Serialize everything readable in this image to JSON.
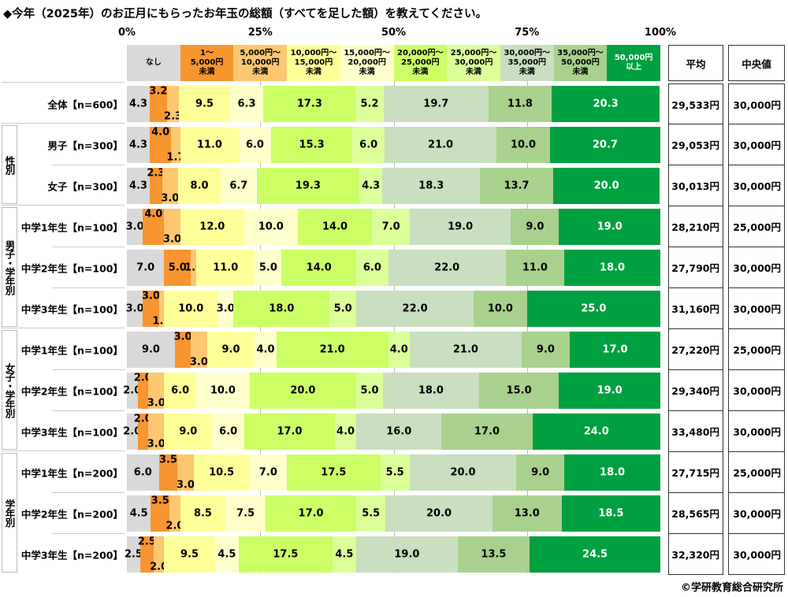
{
  "chart_data": {
    "type": "bar",
    "stacked": true,
    "orientation": "horizontal",
    "title": "◆今年（2025年）のお正月にもらったお年玉の総額（すべてを足した額）を教えてください。",
    "xlim": [
      0,
      100
    ],
    "x_ticks": [
      "0%",
      "25%",
      "50%",
      "75%",
      "100%"
    ],
    "series": [
      {
        "name": "なし",
        "color": "#d9d9d9"
      },
      {
        "name": "1～\n5,000円\n未満",
        "color": "#f79530"
      },
      {
        "name": "5,000円～\n10,000円\n未満",
        "color": "#fcc770"
      },
      {
        "name": "10,000円～\n15,000円\n未満",
        "color": "#ffff99"
      },
      {
        "name": "15,000円～\n20,000円\n未満",
        "color": "#ffffcc"
      },
      {
        "name": "20,000円～\n25,000円\n未満",
        "color": "#ccff66"
      },
      {
        "name": "25,000円～\n30,000円\n未満",
        "color": "#ddff99"
      },
      {
        "name": "30,000円～\n35,000円\n未満",
        "color": "#c9dfbf"
      },
      {
        "name": "35,000円～\n50,000円\n未満",
        "color": "#a9d18e"
      },
      {
        "name": "50,000円\n以上",
        "color": "#00a040"
      }
    ],
    "extra_columns": [
      "平均",
      "中央値"
    ],
    "groups": [
      {
        "label": "",
        "rows": [
          0
        ]
      },
      {
        "label": "性別",
        "rows": [
          1,
          2
        ]
      },
      {
        "label": "男子・学年別",
        "rows": [
          3,
          4,
          5
        ]
      },
      {
        "label": "女子・学年別",
        "rows": [
          6,
          7,
          8
        ]
      },
      {
        "label": "学年別",
        "rows": [
          9,
          10,
          11
        ]
      }
    ],
    "rows": [
      {
        "label": "全体【n=600】",
        "values": [
          4.3,
          3.2,
          2.3,
          9.5,
          6.3,
          17.3,
          5.2,
          19.7,
          11.8,
          20.3
        ],
        "mean": "29,533円",
        "median": "30,000円"
      },
      {
        "label": "男子【n=300】",
        "values": [
          4.3,
          4.0,
          1.7,
          11.0,
          6.0,
          15.3,
          6.0,
          21.0,
          10.0,
          20.7
        ],
        "mean": "29,053円",
        "median": "30,000円"
      },
      {
        "label": "女子【n=300】",
        "values": [
          4.3,
          2.3,
          3.0,
          8.0,
          6.7,
          19.3,
          4.3,
          18.3,
          13.7,
          20.0
        ],
        "mean": "30,013円",
        "median": "30,000円"
      },
      {
        "label": "中学1年生【n=100】",
        "values": [
          3.0,
          4.0,
          3.0,
          12.0,
          10.0,
          14.0,
          7.0,
          19.0,
          9.0,
          19.0
        ],
        "mean": "28,210円",
        "median": "25,000円"
      },
      {
        "label": "中学2年生【n=100】",
        "values": [
          7.0,
          5.0,
          1.0,
          11.0,
          5.0,
          14.0,
          6.0,
          22.0,
          11.0,
          18.0
        ],
        "mean": "27,790円",
        "median": "30,000円"
      },
      {
        "label": "中学3年生【n=100】",
        "values": [
          3.0,
          3.0,
          1.0,
          10.0,
          3.0,
          18.0,
          5.0,
          22.0,
          10.0,
          25.0
        ],
        "mean": "31,160円",
        "median": "30,000円"
      },
      {
        "label": "中学1年生【n=100】",
        "values": [
          9.0,
          3.0,
          3.0,
          9.0,
          4.0,
          21.0,
          4.0,
          21.0,
          9.0,
          17.0
        ],
        "mean": "27,220円",
        "median": "25,000円"
      },
      {
        "label": "中学2年生【n=100】",
        "values": [
          2.0,
          2.0,
          3.0,
          6.0,
          10.0,
          20.0,
          5.0,
          18.0,
          15.0,
          19.0
        ],
        "mean": "29,340円",
        "median": "30,000円"
      },
      {
        "label": "中学3年生【n=100】",
        "values": [
          2.0,
          2.0,
          3.0,
          9.0,
          6.0,
          17.0,
          4.0,
          16.0,
          17.0,
          24.0
        ],
        "mean": "33,480円",
        "median": "30,000円"
      },
      {
        "label": "中学1年生【n=200】",
        "values": [
          6.0,
          3.5,
          3.0,
          10.5,
          7.0,
          17.5,
          5.5,
          20.0,
          9.0,
          18.0
        ],
        "mean": "27,715円",
        "median": "25,000円"
      },
      {
        "label": "中学2年生【n=200】",
        "values": [
          4.5,
          3.5,
          2.0,
          8.5,
          7.5,
          17.0,
          5.5,
          20.0,
          13.0,
          18.5
        ],
        "mean": "28,565円",
        "median": "30,000円"
      },
      {
        "label": "中学3年生【n=200】",
        "values": [
          2.5,
          2.5,
          2.0,
          9.5,
          4.5,
          17.5,
          4.5,
          19.0,
          13.5,
          24.5
        ],
        "mean": "32,320円",
        "median": "30,000円"
      }
    ]
  },
  "credit": "©学研教育総合研究所"
}
